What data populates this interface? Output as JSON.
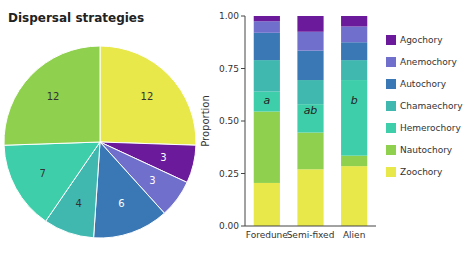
{
  "chart_data": [
    {
      "type": "pie",
      "title": "Dispersal strategies",
      "values": [
        12,
        3,
        3,
        6,
        4,
        7,
        12
      ],
      "colors": [
        "#e8e84a",
        "#6a1a9a",
        "#7070cc",
        "#3a78b5",
        "#40b8b0",
        "#3ecfaa",
        "#8fd14f"
      ],
      "data_labels": true
    },
    {
      "type": "bar",
      "stacked": true,
      "ylabel": "Proportion",
      "categories": [
        "Foredune",
        "Semi-fixed",
        "Alien"
      ],
      "series": [
        {
          "name": "Zoochory",
          "color": "#e8e84a",
          "values": [
            0.205,
            0.27,
            0.285
          ]
        },
        {
          "name": "Nautochory",
          "color": "#8fd14f",
          "values": [
            0.34,
            0.175,
            0.05
          ]
        },
        {
          "name": "Hemerochory",
          "color": "#3ecfaa",
          "values": [
            0.095,
            0.135,
            0.36
          ]
        },
        {
          "name": "Chamaechory",
          "color": "#40b8b0",
          "values": [
            0.15,
            0.115,
            0.095
          ]
        },
        {
          "name": "Autochory",
          "color": "#3a78b5",
          "values": [
            0.13,
            0.14,
            0.085
          ]
        },
        {
          "name": "Anemochory",
          "color": "#7070cc",
          "values": [
            0.055,
            0.09,
            0.075
          ]
        },
        {
          "name": "Agochory",
          "color": "#6a1a9a",
          "values": [
            0.025,
            0.075,
            0.05
          ]
        }
      ],
      "annotations": [
        {
          "text": "a",
          "x": "Foredune",
          "y": 0.6
        },
        {
          "text": "ab",
          "x": "Semi-fixed",
          "y": 0.55
        },
        {
          "text": "b",
          "x": "Alien",
          "y": 0.6
        }
      ],
      "ylim": [
        0.0,
        1.0
      ],
      "yticks": [
        {
          "value": 0.0,
          "label": "0.00"
        },
        0.25,
        {
          "value": 0.5,
          "label": "0.50"
        },
        0.75,
        {
          "value": 1.0,
          "label": "1.00"
        }
      ],
      "grid": false,
      "legend": "right"
    }
  ]
}
